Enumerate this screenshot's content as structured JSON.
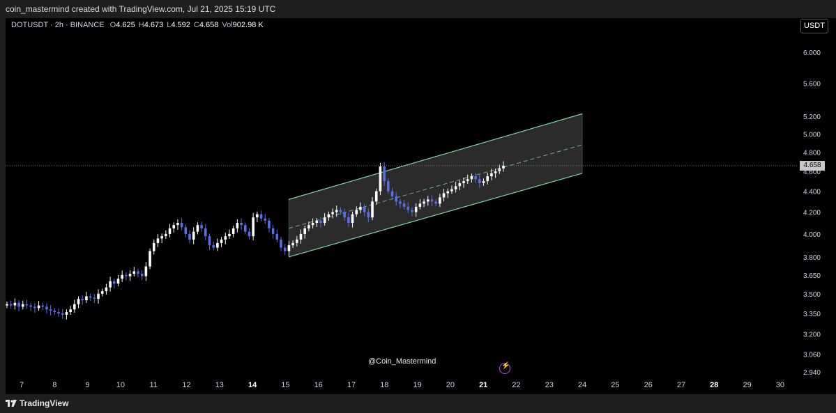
{
  "header": {
    "caption": "coin_mastermind created with TradingView.com, Jul 21, 2025 15:19 UTC"
  },
  "legend": {
    "symbol": "DOTUSDT · 2h · BINANCE",
    "open_label": "O",
    "open": "4.625",
    "high_label": "H",
    "high": "4.673",
    "low_label": "L",
    "low": "4.592",
    "close_label": "C",
    "close": "4.658",
    "vol_label": "Vol",
    "vol": "902.98 K"
  },
  "currency_button": "USDT",
  "watermark": "@Coin_Mastermind",
  "footer": {
    "brand": "TradingView"
  },
  "current_price_label": "4.658",
  "chart_data": {
    "type": "candlestick",
    "x_ticks": [
      "7",
      "8",
      "9",
      "10",
      "11",
      "12",
      "13",
      "14",
      "15",
      "16",
      "17",
      "18",
      "19",
      "20",
      "21",
      "22",
      "23",
      "24",
      "25",
      "26",
      "27",
      "28",
      "29",
      "30"
    ],
    "bold_x_ticks": [
      "14",
      "21",
      "28"
    ],
    "y_ticks": [
      "6.000",
      "5.600",
      "5.200",
      "5.000",
      "4.800",
      "4.600",
      "4.400",
      "4.200",
      "4.000",
      "3.800",
      "3.650",
      "3.500",
      "3.350",
      "3.200",
      "3.060",
      "2.940"
    ],
    "current_price": 4.658,
    "colors": {
      "up": "#ffffff",
      "down": "#5a6ee6",
      "channel": "#7fd6a8",
      "channel_fill": "#3a3a3a"
    },
    "closes": [
      3.42,
      3.41,
      3.43,
      3.4,
      3.42,
      3.41,
      3.4,
      3.39,
      3.41,
      3.4,
      3.38,
      3.37,
      3.36,
      3.35,
      3.34,
      3.36,
      3.38,
      3.42,
      3.46,
      3.45,
      3.48,
      3.47,
      3.46,
      3.5,
      3.52,
      3.55,
      3.6,
      3.58,
      3.62,
      3.65,
      3.64,
      3.66,
      3.68,
      3.66,
      3.64,
      3.72,
      3.85,
      3.92,
      3.96,
      3.98,
      4.0,
      4.05,
      4.08,
      4.1,
      4.06,
      4.0,
      3.95,
      4.02,
      4.08,
      4.05,
      3.98,
      3.9,
      3.88,
      3.92,
      3.95,
      3.98,
      4.0,
      4.05,
      4.1,
      4.08,
      4.02,
      3.98,
      4.15,
      4.18,
      4.14,
      4.12,
      4.05,
      4.0,
      3.95,
      3.88,
      3.85,
      3.9,
      3.92,
      3.95,
      4.0,
      4.05,
      4.08,
      4.1,
      4.12,
      4.1,
      4.15,
      4.18,
      4.2,
      4.22,
      4.2,
      4.15,
      4.1,
      4.18,
      4.22,
      4.25,
      4.2,
      4.15,
      4.3,
      4.4,
      4.65,
      4.5,
      4.4,
      4.35,
      4.3,
      4.28,
      4.25,
      4.22,
      4.2,
      4.25,
      4.28,
      4.3,
      4.32,
      4.3,
      4.28,
      4.34,
      4.38,
      4.4,
      4.42,
      4.45,
      4.48,
      4.5,
      4.52,
      4.55,
      4.52,
      4.48,
      4.5,
      4.55,
      4.58,
      4.6,
      4.63,
      4.658
    ],
    "channel": {
      "start_day": 15.1,
      "end_day": 24.0,
      "upper": [
        4.32,
        5.23
      ],
      "middle": [
        4.05,
        4.88
      ],
      "lower": [
        3.8,
        4.58
      ]
    }
  }
}
